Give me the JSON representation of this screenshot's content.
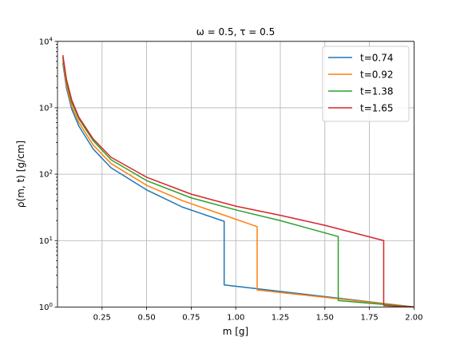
{
  "chart_data": {
    "type": "line",
    "title": "ω = 0.5,  τ = 0.5",
    "xlabel": "m [g]",
    "ylabel": "ρ(m, t)  [g/cm]",
    "xscale": "linear",
    "yscale": "log",
    "xlim": [
      0.0,
      2.0
    ],
    "ylim": [
      1,
      10000
    ],
    "x_ticks": [
      "0.25",
      "0.50",
      "0.75",
      "1.00",
      "1.25",
      "1.50",
      "1.75",
      "2.00"
    ],
    "y_ticks": [
      {
        "base": "10",
        "exp": "0"
      },
      {
        "base": "10",
        "exp": "1"
      },
      {
        "base": "10",
        "exp": "2"
      },
      {
        "base": "10",
        "exp": "3"
      },
      {
        "base": "10",
        "exp": "4"
      }
    ],
    "grid": true,
    "legend_position": "top-right",
    "series": [
      {
        "name": "t=0.74",
        "color": "#1f77b4",
        "x": [
          0.03,
          0.05,
          0.08,
          0.12,
          0.2,
          0.3,
          0.5,
          0.7,
          0.935,
          0.935,
          2.0
        ],
        "y": [
          4700,
          2000,
          950,
          530,
          240,
          125,
          58,
          32,
          19.5,
          2.15,
          1.0
        ]
      },
      {
        "name": "t=0.92",
        "color": "#ff7f0e",
        "x": [
          0.03,
          0.05,
          0.08,
          0.12,
          0.2,
          0.3,
          0.5,
          0.7,
          0.9,
          1.12,
          1.12,
          2.0
        ],
        "y": [
          5200,
          2200,
          1050,
          600,
          275,
          145,
          68,
          40,
          26,
          16.2,
          1.8,
          1.0
        ]
      },
      {
        "name": "t=1.38",
        "color": "#2ca02c",
        "x": [
          0.03,
          0.05,
          0.08,
          0.12,
          0.2,
          0.3,
          0.5,
          0.75,
          1.0,
          1.25,
          1.575,
          1.575,
          2.0
        ],
        "y": [
          5800,
          2500,
          1200,
          680,
          320,
          165,
          80,
          44,
          29,
          20,
          11.5,
          1.25,
          1.0
        ]
      },
      {
        "name": "t=1.65",
        "color": "#d62728",
        "x": [
          0.03,
          0.05,
          0.08,
          0.12,
          0.2,
          0.3,
          0.5,
          0.75,
          1.0,
          1.25,
          1.5,
          1.83,
          1.83,
          2.0
        ],
        "y": [
          6200,
          2700,
          1300,
          720,
          340,
          180,
          90,
          50,
          33,
          24,
          17,
          10,
          1.05,
          1.0
        ]
      }
    ]
  }
}
